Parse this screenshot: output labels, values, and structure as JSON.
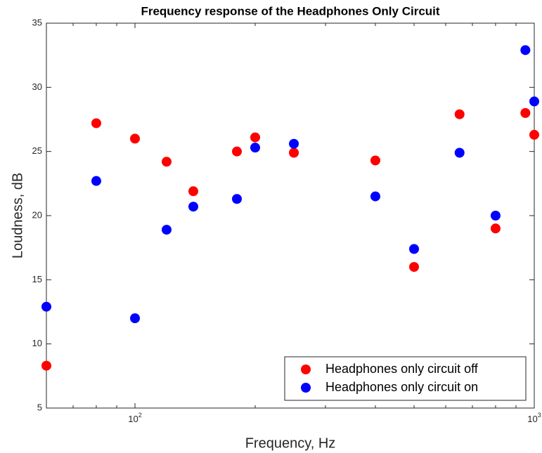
{
  "chart_data": {
    "type": "scatter",
    "title": "Frequency response of the Headphones Only Circuit",
    "xlabel": "Frequency, Hz",
    "ylabel": "Loudness, dB",
    "xscale": "log",
    "x": [
      60,
      80,
      100,
      120,
      140,
      180,
      200,
      250,
      400,
      500,
      650,
      800,
      950,
      1000
    ],
    "series": [
      {
        "name": "Headphones only circuit off",
        "color": "#ff0000",
        "values": [
          8.3,
          27.2,
          26.0,
          24.2,
          21.9,
          25.0,
          26.1,
          24.9,
          24.3,
          16.0,
          27.9,
          19.0,
          28.0,
          26.3
        ]
      },
      {
        "name": "Headphones only circuit on",
        "color": "#0000ff",
        "values": [
          12.9,
          22.7,
          12.0,
          18.9,
          20.7,
          21.3,
          25.3,
          25.6,
          21.5,
          17.4,
          24.9,
          20.0,
          32.9,
          28.9
        ]
      }
    ],
    "xlim": [
      60,
      1000
    ],
    "ylim": [
      5,
      35
    ],
    "xticks": [
      {
        "value": 100,
        "label": "10^2"
      },
      {
        "value": 1000,
        "label": "10^3"
      }
    ],
    "xminorticks": [
      60,
      70,
      80,
      90,
      200,
      300,
      400,
      500,
      600,
      700,
      800,
      900
    ],
    "yticks": [
      5,
      10,
      15,
      20,
      25,
      30,
      35
    ],
    "grid": false,
    "legend": "lower right"
  }
}
